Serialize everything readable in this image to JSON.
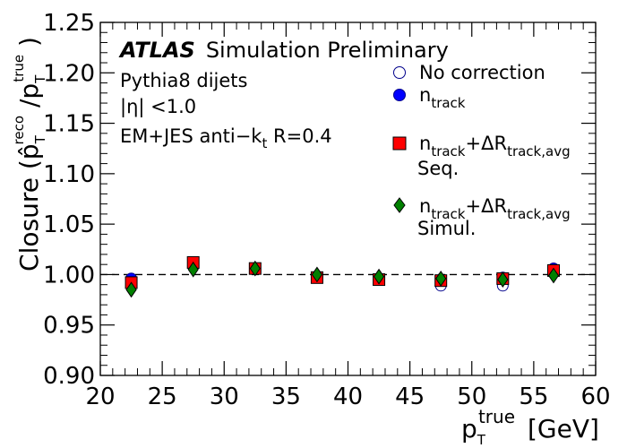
{
  "chart_data": {
    "type": "scatter",
    "xlim": [
      20,
      60
    ],
    "ylim": [
      0.9,
      1.25
    ],
    "x_ticks": [
      "20",
      "25",
      "30",
      "35",
      "40",
      "45",
      "50",
      "55",
      "60"
    ],
    "y_ticks": [
      "0.90",
      "0.95",
      "1.00",
      "1.05",
      "1.10",
      "1.15",
      "1.20",
      "1.25"
    ],
    "xlabel": {
      "main": "p",
      "sub": "T",
      "sup": "true",
      "unit": "[GeV]"
    },
    "ylabel": {
      "main": "Closure (",
      "phat": "p̂",
      "sub": "T",
      "sup": "reco",
      "mid": " /p",
      "sub2": "T",
      "sup2": "true",
      "close": " )"
    },
    "reference_line": {
      "y": 1.0,
      "style": "dashed"
    },
    "annotations": {
      "atlas": "ATLAS",
      "atlas_sub": "Simulation Preliminary",
      "line1": "Pythia8 dijets",
      "line2": "|η| <1.0",
      "line3_main": "EM+JES anti−k",
      "line3_sub": "t",
      "line3_tail": " R=0.4"
    },
    "x": [
      22.5,
      27.5,
      32.5,
      37.5,
      42.5,
      47.5,
      52.5,
      56.6
    ],
    "series": [
      {
        "name": "No correction",
        "marker": "open-circle",
        "color": "#00008b",
        "fill": "none",
        "values": [
          0.996,
          1.008,
          1.006,
          0.997,
          0.996,
          0.989,
          0.989,
          1.006
        ]
      },
      {
        "name": "n_track",
        "marker": "circle",
        "color": "#0000ff",
        "fill": "#0000ff",
        "values": [
          0.996,
          1.012,
          1.006,
          0.997,
          0.996,
          0.995,
          0.997,
          1.006
        ]
      },
      {
        "name": "n_track+ΔR_track,avg Seq.",
        "marker": "square",
        "color": "#ff0000",
        "fill": "#ff0000",
        "values": [
          0.992,
          1.012,
          1.006,
          0.997,
          0.995,
          0.994,
          0.996,
          1.004
        ]
      },
      {
        "name": "n_track+ΔR_track,avg Simul.",
        "marker": "diamond",
        "color": "#008000",
        "fill": "#008000",
        "values": [
          0.985,
          1.005,
          1.006,
          1.0,
          0.998,
          0.996,
          0.995,
          0.999
        ]
      }
    ],
    "legend": {
      "placement": "top-right",
      "entries": [
        {
          "marker": "open-circle",
          "main": "No correction",
          "sub": "",
          "tail": "",
          "sub2": "",
          "line2": ""
        },
        {
          "marker": "circle",
          "main": "n",
          "sub": "track",
          "tail": "",
          "sub2": "",
          "line2": ""
        },
        {
          "marker": "square",
          "main": "n",
          "sub": "track",
          "tail": "+ΔR",
          "sub2": "track,avg",
          "line2": "Seq."
        },
        {
          "marker": "diamond",
          "main": "n",
          "sub": "track",
          "tail": "+ΔR",
          "sub2": "track,avg",
          "line2": "Simul."
        }
      ]
    }
  }
}
